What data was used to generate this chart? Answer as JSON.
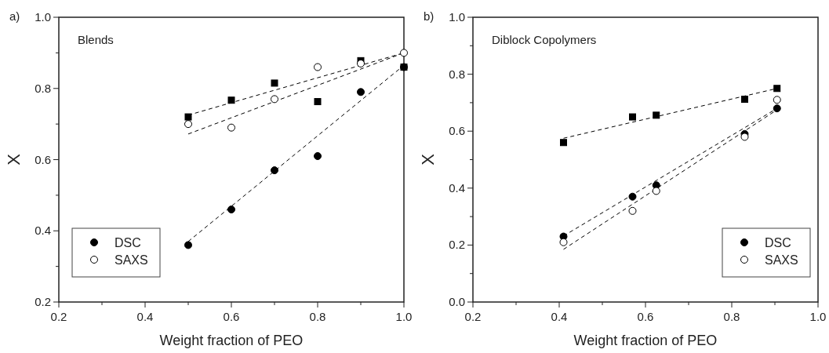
{
  "chart_data": [
    {
      "type": "scatter",
      "title": "a)",
      "annotations": [
        "Blends"
      ],
      "xlabel": "Weight fraction of PEO",
      "ylabel": "X",
      "xlim": [
        0.2,
        1.0
      ],
      "ylim": [
        0.2,
        1.0
      ],
      "xticks": [
        0.2,
        {
          "value": 0.3,
          "label": null
        },
        0.4,
        {
          "value": 0.5,
          "label": null
        },
        0.6,
        {
          "value": 0.7,
          "label": null
        },
        0.8,
        {
          "value": 0.9,
          "label": null
        },
        {
          "value": 1.0,
          "label": "1.0"
        }
      ],
      "yticks": [
        0.2,
        {
          "value": 0.3,
          "label": null
        },
        0.4,
        {
          "value": 0.5,
          "label": null
        },
        0.6,
        {
          "value": 0.7,
          "label": null
        },
        0.8,
        {
          "value": 0.9,
          "label": null
        },
        {
          "value": 1.0,
          "label": "1.0"
        }
      ],
      "legend": "bottom left",
      "grid": false,
      "x": [
        0.5,
        0.6,
        0.7,
        0.8,
        0.9,
        1.0
      ],
      "series": [
        {
          "type": "line",
          "color": "#000000",
          "marker": "none",
          "line_style": "dashed",
          "x": [
            0.5,
            1.0
          ],
          "values": [
            0.725,
            0.9
          ]
        },
        {
          "type": "line",
          "color": "#000000",
          "marker": "none",
          "line_style": "dashed",
          "x": [
            0.5,
            1.0
          ],
          "values": [
            0.672,
            0.9
          ]
        },
        {
          "type": "line",
          "color": "#000000",
          "marker": "none",
          "line_style": "dashed",
          "x": [
            0.5,
            1.0
          ],
          "values": [
            0.37,
            0.865
          ]
        },
        {
          "color": "#000000",
          "marker": "square",
          "values": [
            0.72,
            0.767,
            0.815,
            0.763,
            0.878,
            0.86
          ]
        },
        {
          "name": "DSC",
          "color": "#000000",
          "marker": "circle",
          "values": [
            0.36,
            0.46,
            0.57,
            0.61,
            0.79,
            0.86
          ]
        },
        {
          "name": "SAXS",
          "color": "#ffffff",
          "marker": "circle",
          "values": [
            0.7,
            0.69,
            0.77,
            0.86,
            0.87,
            0.9
          ]
        }
      ]
    },
    {
      "type": "scatter",
      "title": "b)",
      "annotations": [
        "Diblock Copolymers"
      ],
      "xlabel": "Weight fraction of PEO",
      "ylabel": "X",
      "xlim": [
        0.2,
        1.0
      ],
      "ylim": [
        0.0,
        1.0
      ],
      "xticks": [
        0.2,
        {
          "value": 0.3,
          "label": null
        },
        0.4,
        {
          "value": 0.5,
          "label": null
        },
        0.6,
        {
          "value": 0.7,
          "label": null
        },
        0.8,
        {
          "value": 0.9,
          "label": null
        },
        {
          "value": 1.0,
          "label": "1.0"
        }
      ],
      "yticks": [
        {
          "value": 0.0,
          "label": "0.0"
        },
        {
          "value": 0.1,
          "label": null
        },
        0.2,
        {
          "value": 0.3,
          "label": null
        },
        0.4,
        {
          "value": 0.5,
          "label": null
        },
        0.6,
        {
          "value": 0.7,
          "label": null
        },
        0.8,
        {
          "value": 0.9,
          "label": null
        },
        {
          "value": 1.0,
          "label": "1.0"
        }
      ],
      "legend": "bottom right",
      "grid": false,
      "x": [
        0.41,
        0.57,
        0.625,
        0.83,
        0.905
      ],
      "series": [
        {
          "type": "line",
          "color": "#000000",
          "marker": "none",
          "line_style": "dashed",
          "x": [
            0.41,
            0.905
          ],
          "values": [
            0.575,
            0.75
          ]
        },
        {
          "type": "line",
          "color": "#000000",
          "marker": "none",
          "line_style": "dashed",
          "x": [
            0.41,
            0.905
          ],
          "values": [
            0.232,
            0.68
          ]
        },
        {
          "type": "line",
          "color": "#000000",
          "marker": "none",
          "line_style": "dashed",
          "x": [
            0.41,
            0.905
          ],
          "values": [
            0.185,
            0.675
          ]
        },
        {
          "color": "#000000",
          "marker": "square",
          "values": [
            0.56,
            0.65,
            0.656,
            0.712,
            0.75
          ]
        },
        {
          "name": "DSC",
          "color": "#000000",
          "marker": "circle",
          "values": [
            0.23,
            0.37,
            0.41,
            0.59,
            0.68
          ]
        },
        {
          "name": "SAXS",
          "color": "#ffffff",
          "marker": "circle",
          "values": [
            0.21,
            0.32,
            0.39,
            0.58,
            0.71
          ]
        }
      ]
    }
  ]
}
